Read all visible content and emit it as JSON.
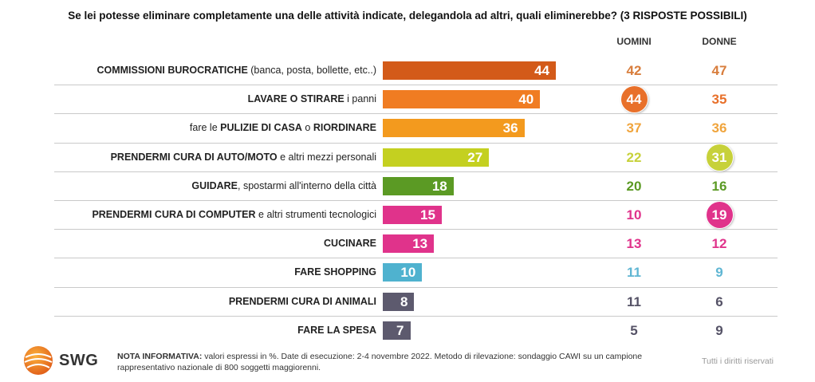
{
  "title": "Se lei potesse eliminare completamente una delle attività indicate, delegandola ad altri, quali eliminerebbe? (3 RISPOSTE POSSIBILI)",
  "columns": {
    "men": "UOMINI",
    "women": "DONNE"
  },
  "chart_data": {
    "type": "bar",
    "orientation": "horizontal",
    "unit": "%",
    "categories": [
      "COMMISSIONI BUROCRATICHE (banca, posta, bollette, etc..)",
      "LAVARE O STIRARE i panni",
      "fare le PULIZIE DI CASA o RIORDINARE",
      "PRENDERMI CURA DI AUTO/MOTO e altri mezzi personali",
      "GUIDARE, spostarmi all'interno della città",
      "PRENDERMI CURA DI COMPUTER e altri strumenti tecnologici",
      "CUCINARE",
      "FARE SHOPPING",
      "PRENDERMI CURA DI ANIMALI",
      "FARE LA SPESA"
    ],
    "label_parts": [
      [
        {
          "t": "COMMISSIONI BUROCRATICHE",
          "b": true
        },
        {
          "t": " (banca, posta, bollette, etc..)",
          "b": false
        }
      ],
      [
        {
          "t": "LAVARE O STIRARE",
          "b": true
        },
        {
          "t": " i panni",
          "b": false
        }
      ],
      [
        {
          "t": "fare le ",
          "b": false
        },
        {
          "t": "PULIZIE DI CASA",
          "b": true
        },
        {
          "t": " o ",
          "b": false
        },
        {
          "t": "RIORDINARE",
          "b": true
        }
      ],
      [
        {
          "t": "PRENDERMI CURA DI AUTO/MOTO",
          "b": true
        },
        {
          "t": " e altri mezzi personali",
          "b": false
        }
      ],
      [
        {
          "t": "GUIDARE",
          "b": true
        },
        {
          "t": ", spostarmi all'interno della città",
          "b": false
        }
      ],
      [
        {
          "t": "PRENDERMI CURA DI COMPUTER",
          "b": true
        },
        {
          "t": " e altri strumenti tecnologici",
          "b": false
        }
      ],
      [
        {
          "t": "CUCINARE",
          "b": true
        }
      ],
      [
        {
          "t": "FARE SHOPPING",
          "b": true
        }
      ],
      [
        {
          "t": "PRENDERMI CURA DI ANIMALI",
          "b": true
        }
      ],
      [
        {
          "t": "FARE LA SPESA",
          "b": true
        }
      ]
    ],
    "series": [
      {
        "values": [
          44,
          40,
          36,
          27,
          18,
          15,
          13,
          10,
          8,
          7
        ]
      },
      {
        "name": "UOMINI",
        "values": [
          42,
          44,
          37,
          22,
          20,
          10,
          13,
          11,
          11,
          5
        ]
      },
      {
        "name": "DONNE",
        "values": [
          47,
          35,
          36,
          31,
          16,
          19,
          12,
          9,
          6,
          9
        ]
      }
    ],
    "highlighted": {
      "UOMINI": [
        1
      ],
      "DONNE": [
        3,
        5
      ]
    },
    "colors": [
      "#d35a19",
      "#f07c22",
      "#f39a1e",
      "#c4d020",
      "#5b9a24",
      "#e0338b",
      "#e0338b",
      "#4fb2cf",
      "#5d5a6e",
      "#5d5a6e"
    ],
    "subcolors": [
      "#d87d3c",
      "#e8702a",
      "#f0a43c",
      "#c7d13a",
      "#5b9a24",
      "#e0338b",
      "#e0338b",
      "#5fb6d3",
      "#555266",
      "#555266"
    ],
    "xlim": [
      0,
      50
    ]
  },
  "footer": {
    "logo_text": "SWG",
    "note_label": "NOTA INFORMATIVA:",
    "note_text": " valori espressi in %. Date di esecuzione: 2-4 novembre 2022. Metodo di rilevazione: sondaggio CAWI su un campione rappresentativo nazionale di 800 soggetti maggiorenni.",
    "rights": "Tutti i diritti riservati"
  }
}
